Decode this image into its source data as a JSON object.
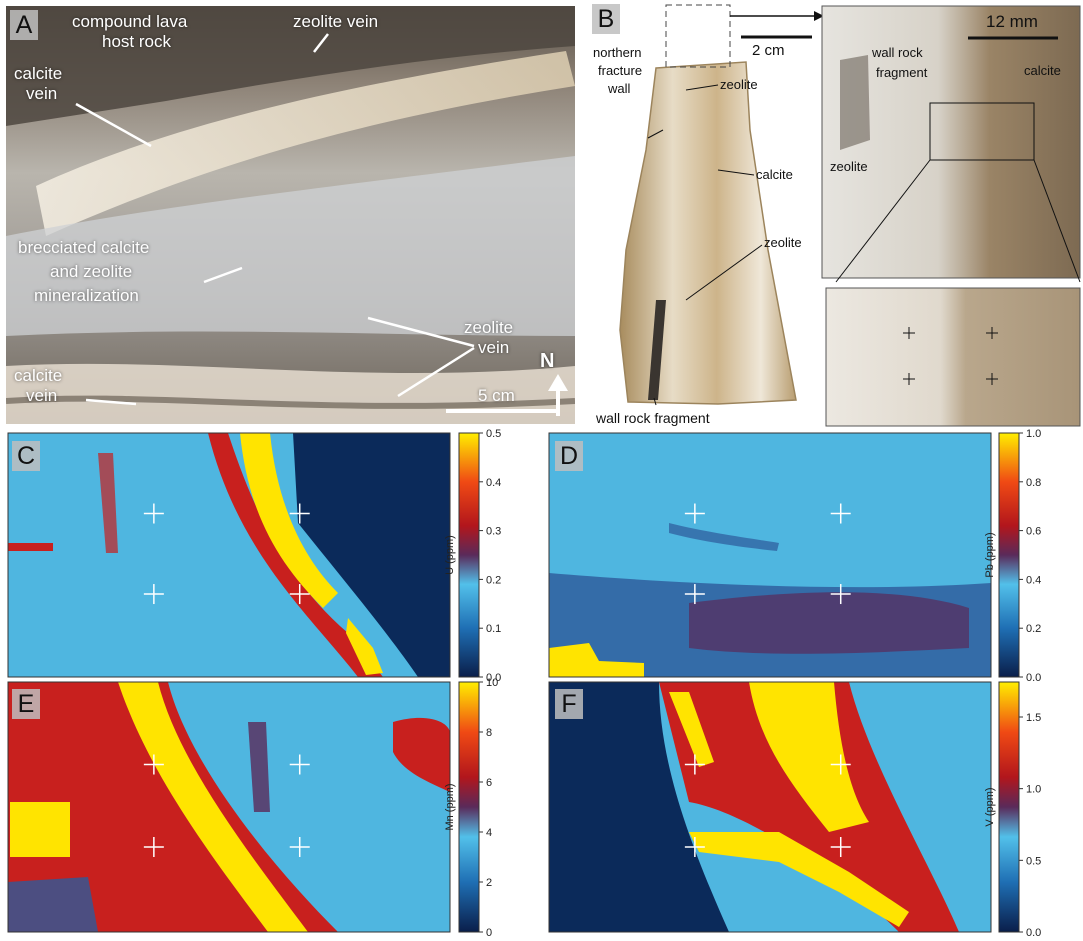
{
  "panel_a": {
    "label": "A",
    "annotations": {
      "host_rock_1": "compound lava",
      "host_rock_2": "host rock",
      "zeolite_vein_top": "zeolite vein",
      "calcite_vein_top_1": "calcite",
      "calcite_vein_top_2": "vein",
      "breccia_1": "brecciated calcite",
      "breccia_2": "and zeolite",
      "breccia_3": "mineralization",
      "zeolite_vein_bottom_1": "zeolite",
      "zeolite_vein_bottom_2": "vein",
      "calcite_vein_bottom_1": "calcite",
      "calcite_vein_bottom_2": "vein",
      "north": "N",
      "scale": "5 cm"
    }
  },
  "panel_b": {
    "label": "B",
    "annotations": {
      "northern_1": "northern",
      "northern_2": "fracture",
      "northern_3": "wall",
      "zeolite_1": "zeolite",
      "calcite": "calcite",
      "zeolite_2": "zeolite",
      "wall_rock": "wall rock fragment",
      "scale": "2 cm"
    },
    "inset": {
      "scale": "12 mm",
      "wall_rock_1": "wall rock",
      "wall_rock_2": "fragment",
      "calcite": "calcite",
      "zeolite": "zeolite"
    }
  },
  "maps": [
    {
      "label": "C",
      "element": "U (ppm)",
      "ticks": [
        "0.0",
        "0.1",
        "0.2",
        "0.3",
        "0.4",
        "0.5"
      ]
    },
    {
      "label": "D",
      "element": "Pb (ppm)",
      "ticks": [
        "0.0",
        "0.2",
        "0.4",
        "0.6",
        "0.8",
        "1.0"
      ]
    },
    {
      "label": "E",
      "element": "Mn (ppm)",
      "ticks": [
        "0",
        "2",
        "4",
        "6",
        "8",
        "10"
      ]
    },
    {
      "label": "F",
      "element": "V (ppm)",
      "ticks": [
        "0.0",
        "0.5",
        "1.0",
        "1.5"
      ]
    }
  ],
  "colors": {
    "map_background": "#4fb6e0",
    "map_dark": "#0b2a5a",
    "map_red": "#c8201e",
    "map_yellow": "#ffe400"
  }
}
